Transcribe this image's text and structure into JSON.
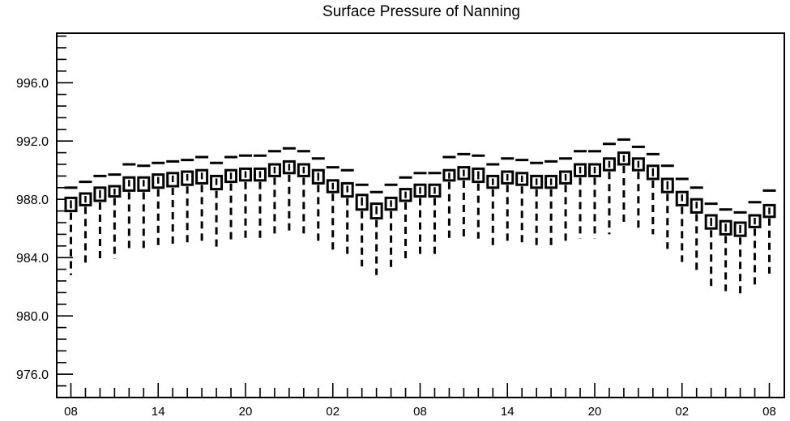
{
  "chart_data": {
    "type": "boxplot",
    "title": "Surface Pressure of Nanning",
    "xlabel": "",
    "ylabel": "",
    "ylim": [
      974.4,
      999.4
    ],
    "yticks": [
      976.0,
      980.0,
      984.0,
      988.0,
      992.0,
      996.0
    ],
    "ytick_labels": [
      "976.0",
      "980.0",
      "984.0",
      "988.0",
      "992.0",
      "996.0"
    ],
    "xtick_labels": [
      "08",
      "14",
      "20",
      "02",
      "08",
      "14",
      "20",
      "02",
      "08"
    ],
    "xtick_label_every": 6,
    "grid": false,
    "legend": "none",
    "series": [
      {
        "q1": [
          987.2,
          987.6,
          987.9,
          988.2,
          988.6,
          988.6,
          988.8,
          988.9,
          989.0,
          989.1,
          988.7,
          989.2,
          989.3,
          989.3,
          989.6,
          989.8,
          989.6,
          989.1,
          988.5,
          988.2,
          987.3,
          986.7,
          987.3,
          987.9,
          988.2,
          988.2,
          989.3,
          989.4,
          989.2,
          988.8,
          989.1,
          989.0,
          988.8,
          988.8,
          989.1,
          989.6,
          989.6,
          990.0,
          990.4,
          990.0,
          989.4,
          988.5,
          987.6,
          987.1,
          986.0,
          985.6,
          985.5,
          986.1,
          986.8
        ],
        "median": [
          987.6,
          988.0,
          988.3,
          988.5,
          989.1,
          989.1,
          989.3,
          989.4,
          989.5,
          989.6,
          989.2,
          989.6,
          989.7,
          989.7,
          990.0,
          990.2,
          990.0,
          989.5,
          988.9,
          988.7,
          987.8,
          987.2,
          987.7,
          988.3,
          988.6,
          988.6,
          989.6,
          989.8,
          989.6,
          989.2,
          989.5,
          989.4,
          989.2,
          989.2,
          989.5,
          990.0,
          990.0,
          990.4,
          990.8,
          990.4,
          989.8,
          988.9,
          988.1,
          987.6,
          986.4,
          986.0,
          985.9,
          986.5,
          987.2
        ],
        "q3": [
          988.1,
          988.4,
          988.8,
          988.9,
          989.5,
          989.5,
          989.7,
          989.8,
          989.9,
          990.0,
          989.6,
          990.0,
          990.1,
          990.1,
          990.4,
          990.6,
          990.4,
          990.0,
          989.3,
          989.1,
          988.3,
          987.7,
          988.1,
          988.7,
          989.0,
          989.0,
          990.0,
          990.2,
          990.1,
          989.6,
          989.9,
          989.8,
          989.6,
          989.6,
          989.9,
          990.4,
          990.4,
          990.8,
          991.2,
          990.8,
          990.3,
          989.4,
          988.5,
          988.0,
          986.9,
          986.5,
          986.4,
          986.9,
          987.6
        ],
        "whisker_low": [
          982.8,
          983.5,
          983.7,
          983.9,
          984.6,
          984.6,
          984.7,
          984.8,
          984.9,
          985.0,
          984.6,
          985.0,
          985.1,
          985.1,
          985.4,
          985.6,
          985.6,
          985.0,
          984.4,
          984.1,
          983.4,
          982.8,
          983.2,
          983.7,
          984.0,
          984.0,
          985.1,
          985.4,
          985.3,
          984.7,
          985.0,
          985.0,
          984.7,
          984.8,
          985.0,
          985.3,
          985.3,
          985.6,
          986.2,
          985.9,
          985.6,
          984.6,
          983.7,
          983.0,
          982.0,
          981.7,
          981.4,
          982.1,
          982.9
        ],
        "whisker_high": [
          988.8,
          989.2,
          989.6,
          989.7,
          990.4,
          990.3,
          990.5,
          990.6,
          990.7,
          990.9,
          990.5,
          990.9,
          991.0,
          991.0,
          991.3,
          991.5,
          991.3,
          990.8,
          990.2,
          990.0,
          989.0,
          988.5,
          989.0,
          989.5,
          989.8,
          989.8,
          990.9,
          991.1,
          991.0,
          990.4,
          990.8,
          990.7,
          990.5,
          990.6,
          990.8,
          991.3,
          991.3,
          991.8,
          992.1,
          991.6,
          991.1,
          990.3,
          989.4,
          988.8,
          987.7,
          987.3,
          987.1,
          987.8,
          988.6
        ]
      }
    ]
  }
}
